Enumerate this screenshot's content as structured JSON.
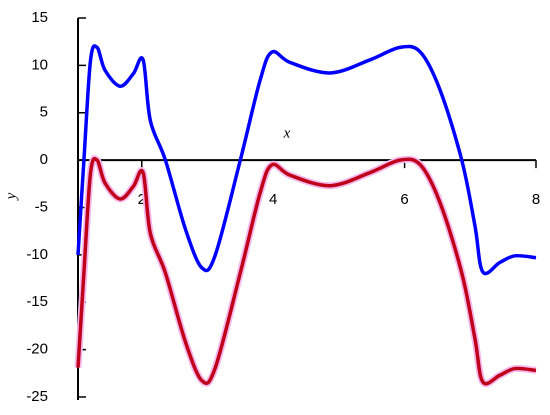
{
  "chart_data": {
    "type": "line",
    "x_label": "x",
    "y_label": "y",
    "x": [
      1.03,
      1.12,
      1.22,
      1.32,
      1.44,
      1.67,
      1.87,
      2.02,
      2.13,
      2.36,
      2.67,
      2.92,
      3.12,
      3.5,
      3.8,
      3.98,
      4.26,
      4.87,
      5.48,
      5.93,
      6.24,
      6.54,
      6.87,
      7.07,
      7.19,
      7.45,
      7.68,
      8.0
    ],
    "series": [
      {
        "color": "#0000ff",
        "values": [
          -10,
          0,
          10.5,
          11.9,
          9.5,
          7.8,
          9.1,
          10.6,
          4.2,
          0,
          -7.4,
          -11.4,
          -10,
          0,
          8.4,
          11.4,
          10.3,
          9.2,
          10.6,
          11.9,
          11.4,
          7.4,
          0,
          -6.9,
          -11.8,
          -10.8,
          -10.1,
          -10.3
        ]
      },
      {
        "color": "#c0001a",
        "values": [
          -21.9,
          -11.9,
          -1.4,
          0,
          -2.4,
          -4.1,
          -2.8,
          -1.3,
          -7.7,
          -11.9,
          -19.3,
          -23.3,
          -21.9,
          -11.9,
          -3.5,
          -0.5,
          -1.6,
          -2.7,
          -1.3,
          0,
          -0.5,
          -4.5,
          -11.9,
          -18.8,
          -23.4,
          -22.7,
          -22,
          -22.2
        ]
      }
    ],
    "xlim": [
      1.03,
      8
    ],
    "ylim": [
      -25,
      15
    ],
    "xticks": [
      2,
      4,
      6,
      8
    ],
    "yticks": [
      15,
      10,
      5,
      0,
      -5,
      -10,
      -15,
      -20,
      -25
    ]
  }
}
